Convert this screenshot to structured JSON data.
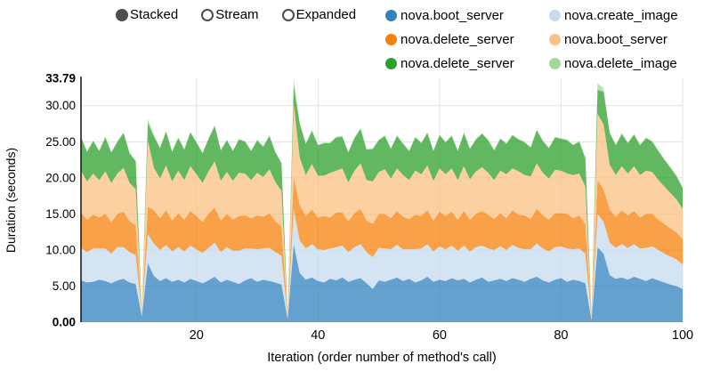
{
  "controls": {
    "options": [
      {
        "label": "Stacked",
        "selected": true
      },
      {
        "label": "Stream",
        "selected": false
      },
      {
        "label": "Expanded",
        "selected": false
      }
    ]
  },
  "legend": {
    "items": [
      {
        "label": "nova.boot_server",
        "color": "#3182bd"
      },
      {
        "label": "nova.create_image",
        "color": "#c6dbef"
      },
      {
        "label": "nova.delete_server",
        "color": "#f5820b"
      },
      {
        "label": "nova.boot_server",
        "color": "#fbc183"
      },
      {
        "label": "nova.delete_server",
        "color": "#2ca02c"
      },
      {
        "label": "nova.delete_image",
        "color": "#a1d99b"
      }
    ]
  },
  "chart_data": {
    "type": "area",
    "stacked": true,
    "xlabel": "Iteration (order number of method's call)",
    "ylabel": "Duration (seconds)",
    "x_range": [
      1,
      100
    ],
    "ylim": [
      0,
      33.79
    ],
    "fill_opacity": 0.75,
    "grid": true,
    "legend_position": "top-right",
    "ytick_values": [
      0,
      5,
      10,
      15,
      20,
      25,
      30,
      33.79
    ],
    "ytick_labels": [
      "0.00",
      "5.00",
      "10.00",
      "15.00",
      "20.00",
      "25.00",
      "30.00",
      "33.79"
    ],
    "ytick_bold": [
      true,
      false,
      false,
      false,
      false,
      false,
      false,
      true
    ],
    "xtick_values": [
      20,
      40,
      60,
      80,
      100
    ],
    "xtick_labels": [
      "20",
      "40",
      "60",
      "80",
      "100"
    ],
    "series": [
      {
        "name": "nova.boot_server",
        "color": "#3182bd",
        "values": [
          5.8,
          5.5,
          5.6,
          5.9,
          5.7,
          5.4,
          5.8,
          6.0,
          5.5,
          5.3,
          0.8,
          8.2,
          6.4,
          5.7,
          6.1,
          5.6,
          5.9,
          5.5,
          6.0,
          5.7,
          5.4,
          5.8,
          6.3,
          5.5,
          5.9,
          5.6,
          5.3,
          5.8,
          6.1,
          5.6,
          5.9,
          5.7,
          5.5,
          5.2,
          0.4,
          10.8,
          6.8,
          5.9,
          6.2,
          5.7,
          5.5,
          6.0,
          5.8,
          6.2,
          5.6,
          5.9,
          6.1,
          5.4,
          4.6,
          5.8,
          5.6,
          5.9,
          6.2,
          5.7,
          6.0,
          5.5,
          5.8,
          6.3,
          5.6,
          5.9,
          5.7,
          6.1,
          5.8,
          6.0,
          5.5,
          5.9,
          6.2,
          5.6,
          5.8,
          6.0,
          5.7,
          6.1,
          5.9,
          5.6,
          6.0,
          6.3,
          5.8,
          5.5,
          5.9,
          6.1,
          5.6,
          5.9,
          5.7,
          5.4,
          0.3,
          10.4,
          9.5,
          6.5,
          6.0,
          6.2,
          5.9,
          6.3,
          6.0,
          5.7,
          6.1,
          5.8,
          5.5,
          5.2,
          5.0,
          4.6
        ]
      },
      {
        "name": "nova.create_image",
        "color": "#c6dbef",
        "values": [
          4.5,
          4.2,
          4.6,
          4.3,
          4.5,
          4.1,
          4.6,
          4.4,
          4.2,
          4.0,
          0.3,
          4.0,
          4.5,
          4.3,
          4.6,
          4.2,
          4.5,
          4.3,
          4.6,
          4.4,
          4.2,
          4.5,
          4.7,
          4.2,
          4.5,
          4.3,
          4.6,
          4.4,
          4.1,
          4.5,
          4.3,
          4.6,
          4.2,
          4.0,
          0.2,
          4.8,
          4.5,
          4.3,
          4.6,
          4.4,
          4.5,
          4.2,
          4.6,
          4.4,
          4.1,
          4.5,
          4.7,
          4.3,
          4.4,
          4.5,
          4.6,
          4.2,
          4.5,
          4.4,
          4.1,
          4.6,
          4.4,
          4.5,
          4.2,
          4.6,
          4.4,
          4.5,
          4.1,
          4.6,
          4.3,
          4.5,
          4.4,
          4.6,
          4.2,
          4.5,
          4.3,
          4.6,
          4.4,
          4.5,
          4.1,
          4.6,
          4.4,
          4.3,
          4.5,
          4.4,
          4.6,
          4.2,
          4.5,
          4.1,
          0.2,
          4.6,
          4.4,
          4.5,
          4.3,
          4.6,
          4.4,
          4.5,
          4.2,
          4.6,
          4.4,
          4.2,
          4.0,
          3.9,
          3.7,
          3.4
        ]
      },
      {
        "name": "nova.delete_server",
        "color": "#f5820b",
        "values": [
          4.9,
          4.5,
          4.7,
          4.3,
          4.8,
          4.4,
          4.6,
          4.9,
          4.3,
          4.1,
          0.2,
          3.8,
          4.6,
          4.4,
          4.8,
          4.3,
          4.7,
          4.4,
          4.8,
          4.6,
          4.3,
          4.7,
          4.9,
          4.4,
          4.6,
          4.3,
          4.8,
          4.6,
          4.2,
          4.7,
          4.4,
          4.8,
          4.3,
          4.0,
          0.2,
          4.5,
          4.9,
          4.5,
          4.8,
          4.4,
          4.7,
          4.3,
          4.8,
          4.6,
          4.3,
          4.7,
          4.9,
          4.4,
          4.6,
          4.7,
          4.8,
          4.3,
          4.7,
          4.5,
          4.2,
          4.8,
          4.5,
          4.7,
          4.3,
          4.8,
          4.6,
          4.7,
          4.3,
          4.8,
          4.4,
          4.6,
          4.8,
          4.7,
          4.3,
          4.6,
          4.4,
          4.8,
          4.6,
          4.7,
          4.2,
          4.8,
          4.6,
          4.4,
          4.7,
          4.6,
          4.8,
          4.3,
          4.6,
          4.1,
          0.2,
          4.7,
          4.5,
          4.6,
          4.3,
          4.7,
          4.5,
          4.6,
          4.3,
          4.7,
          4.5,
          4.2,
          4.1,
          3.9,
          3.7,
          3.5
        ]
      },
      {
        "name": "nova.boot_server",
        "color": "#fbc183",
        "values": [
          5.8,
          5.3,
          5.7,
          5.2,
          5.9,
          5.4,
          5.6,
          6.1,
          5.3,
          5.0,
          0.2,
          9.2,
          5.9,
          5.5,
          6.2,
          5.4,
          5.9,
          5.5,
          6.2,
          5.8,
          5.4,
          5.9,
          6.4,
          5.5,
          5.8,
          5.4,
          6.0,
          5.8,
          5.3,
          5.9,
          5.5,
          6.1,
          5.4,
          5.0,
          0.2,
          10.2,
          6.6,
          5.7,
          6.3,
          5.8,
          5.6,
          6.2,
          5.8,
          6.1,
          5.4,
          5.9,
          6.3,
          5.6,
          5.9,
          5.8,
          6.2,
          5.5,
          5.9,
          5.8,
          5.4,
          6.1,
          5.8,
          6.2,
          5.5,
          6.0,
          5.8,
          6.0,
          5.5,
          6.2,
          5.6,
          5.9,
          6.1,
          5.8,
          5.4,
          5.9,
          6.1,
          5.8,
          6.0,
          5.6,
          5.9,
          6.3,
          5.9,
          5.7,
          6.0,
          5.9,
          5.6,
          6.0,
          5.8,
          5.2,
          0.2,
          9.2,
          9.0,
          6.2,
          5.8,
          6.1,
          5.8,
          6.2,
          5.9,
          6.0,
          5.8,
          5.5,
          5.2,
          4.9,
          4.6,
          4.2
        ]
      },
      {
        "name": "nova.delete_server",
        "color": "#2ca02c",
        "values": [
          4.6,
          4.1,
          4.5,
          4.0,
          4.7,
          4.2,
          4.4,
          4.8,
          4.1,
          3.9,
          0.1,
          2.4,
          4.4,
          4.2,
          4.7,
          4.1,
          4.5,
          4.2,
          4.7,
          4.4,
          4.1,
          4.5,
          4.9,
          4.2,
          4.4,
          4.1,
          4.6,
          4.4,
          4.0,
          4.5,
          4.2,
          4.6,
          4.1,
          3.8,
          0.1,
          2.5,
          4.7,
          4.3,
          4.6,
          4.2,
          4.5,
          4.1,
          4.6,
          4.4,
          4.1,
          4.5,
          4.8,
          4.2,
          4.5,
          4.4,
          4.6,
          4.1,
          4.5,
          4.3,
          4.0,
          4.6,
          4.3,
          4.5,
          4.1,
          4.6,
          4.4,
          4.5,
          4.0,
          4.6,
          4.2,
          4.4,
          4.6,
          4.5,
          4.1,
          4.4,
          4.2,
          4.6,
          4.4,
          4.5,
          4.0,
          4.6,
          4.4,
          4.2,
          4.5,
          4.4,
          4.6,
          4.1,
          4.4,
          3.9,
          0.1,
          3.3,
          4.5,
          4.4,
          4.1,
          4.5,
          4.2,
          4.4,
          4.1,
          4.5,
          4.2,
          4.0,
          3.7,
          3.5,
          3.2,
          2.9
        ]
      },
      {
        "name": "nova.delete_image",
        "color": "#a1d99b",
        "values": [
          0.1,
          0.1,
          0.1,
          0.1,
          0.1,
          0.1,
          0.1,
          0.1,
          0.1,
          0.1,
          0.05,
          0.6,
          0.1,
          0.1,
          0.1,
          0.1,
          0.1,
          0.1,
          0.1,
          0.1,
          0.1,
          0.1,
          0.1,
          0.1,
          0.1,
          0.1,
          0.1,
          0.1,
          0.1,
          0.1,
          0.1,
          0.1,
          0.1,
          0.1,
          0.05,
          1.0,
          0.1,
          0.1,
          0.1,
          0.1,
          0.1,
          0.1,
          0.1,
          0.1,
          0.1,
          0.1,
          0.1,
          0.1,
          0.1,
          0.1,
          0.1,
          0.1,
          0.1,
          0.1,
          0.1,
          0.1,
          0.1,
          0.1,
          0.1,
          0.1,
          0.1,
          0.1,
          0.1,
          0.1,
          0.1,
          0.1,
          0.1,
          0.1,
          0.1,
          0.1,
          0.1,
          0.1,
          0.1,
          0.1,
          0.1,
          0.1,
          0.1,
          0.1,
          0.1,
          0.1,
          0.1,
          0.1,
          0.1,
          0.1,
          0.05,
          0.9,
          0.5,
          0.1,
          0.1,
          0.1,
          0.1,
          0.1,
          0.1,
          0.1,
          0.1,
          0.1,
          0.1,
          0.1,
          0.1,
          0.1
        ]
      }
    ]
  }
}
